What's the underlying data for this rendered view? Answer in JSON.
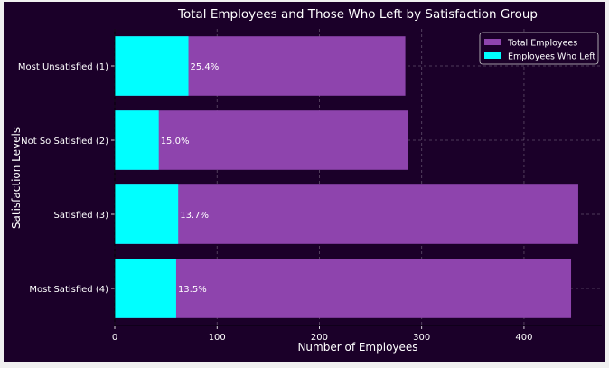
{
  "chart_data": {
    "type": "bar",
    "orientation": "horizontal",
    "stacked": false,
    "title": "Total Employees and Those Who Left by Satisfaction Group",
    "xlabel": "Number of Employees",
    "ylabel": "Satisfaction Levels",
    "categories": [
      "Most Unsatisfied (1)",
      "Not So Satisfied (2)",
      "Satisfied (3)",
      "Most Satisfied (4)"
    ],
    "series": [
      {
        "name": "Total Employees",
        "values": [
          284,
          287,
          453,
          446
        ],
        "color": "#8e44ad"
      },
      {
        "name": "Employees Who Left",
        "values": [
          72,
          43,
          62,
          60
        ],
        "color": "#00ffff"
      }
    ],
    "data_labels": [
      "25.4%",
      "15.0%",
      "13.7%",
      "13.5%"
    ],
    "xlim": [
      0,
      476
    ],
    "xticks": [
      0,
      100,
      200,
      300,
      400
    ],
    "grid": true,
    "legend_position": "top-right",
    "background": "#1b0029"
  }
}
